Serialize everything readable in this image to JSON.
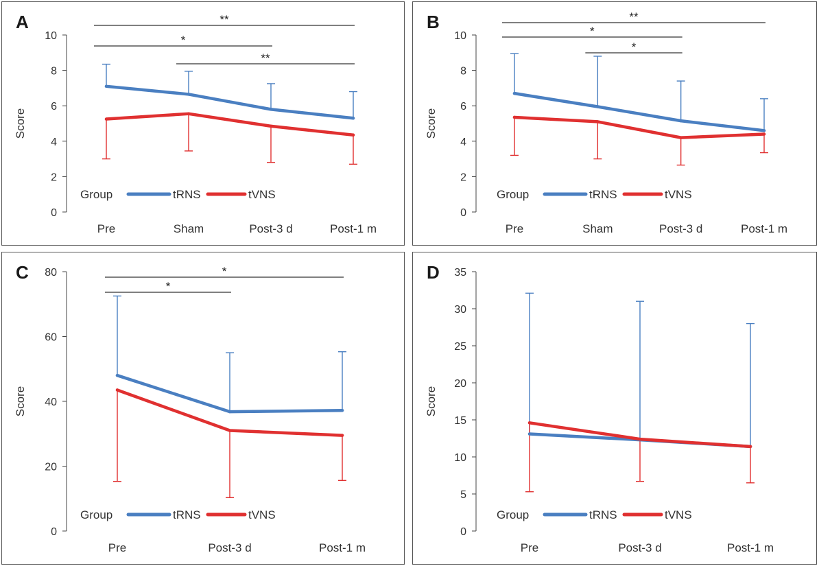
{
  "colors": {
    "tRNS": "#4a7fc1",
    "tVNS": "#e03030",
    "axis": "#444444",
    "bracket": "#333333"
  },
  "chart_data": [
    {
      "panel": "A",
      "type": "line",
      "ylabel": "Score",
      "ylim": [
        0,
        10
      ],
      "yticks": [
        0,
        2,
        4,
        6,
        8,
        10
      ],
      "categories": [
        "Pre",
        "Sham",
        "Post-3 d",
        "Post-1 m"
      ],
      "legend": {
        "title": "Group",
        "entries": [
          "tRNS",
          "tVNS"
        ]
      },
      "series": [
        {
          "name": "tRNS",
          "values": [
            7.1,
            6.65,
            5.8,
            5.3
          ],
          "err": [
            8.35,
            7.95,
            7.25,
            6.8
          ],
          "errdir": "up"
        },
        {
          "name": "tVNS",
          "values": [
            5.25,
            5.55,
            4.85,
            4.35
          ],
          "err": [
            3.0,
            3.45,
            2.8,
            2.7
          ],
          "errdir": "down"
        }
      ],
      "brackets": [
        {
          "from": 0,
          "to": 3,
          "label": "**",
          "level": 0
        },
        {
          "from": 0,
          "to": 2,
          "label": "*",
          "level": 1
        },
        {
          "from": 1,
          "to": 3,
          "label": "**",
          "level": 2
        }
      ]
    },
    {
      "panel": "B",
      "type": "line",
      "ylabel": "Score",
      "ylim": [
        0,
        10
      ],
      "yticks": [
        0,
        2,
        4,
        6,
        8,
        10
      ],
      "categories": [
        "Pre",
        "Sham",
        "Post-3 d",
        "Post-1 m"
      ],
      "legend": {
        "title": "Group",
        "entries": [
          "tRNS",
          "tVNS"
        ]
      },
      "series": [
        {
          "name": "tRNS",
          "values": [
            6.7,
            5.95,
            5.15,
            4.6
          ],
          "err": [
            8.95,
            8.8,
            7.4,
            6.4
          ],
          "errdir": "up"
        },
        {
          "name": "tVNS",
          "values": [
            5.35,
            5.1,
            4.2,
            4.4
          ],
          "err": [
            3.2,
            3.0,
            2.65,
            3.35
          ],
          "errdir": "down"
        }
      ],
      "brackets": [
        {
          "from": 0,
          "to": 3,
          "label": "**",
          "level": 0
        },
        {
          "from": 0,
          "to": 2,
          "label": "*",
          "level": 1
        },
        {
          "from": 1,
          "to": 2,
          "label": "*",
          "level": 2
        }
      ]
    },
    {
      "panel": "C",
      "type": "line",
      "ylabel": "Score",
      "ylim": [
        0,
        80
      ],
      "yticks": [
        0,
        20,
        40,
        60,
        80
      ],
      "categories": [
        "Pre",
        "Post-3 d",
        "Post-1 m"
      ],
      "legend": {
        "title": "Group",
        "entries": [
          "tRNS",
          "tVNS"
        ]
      },
      "series": [
        {
          "name": "tRNS",
          "values": [
            48,
            36.8,
            37.2
          ],
          "err": [
            72.5,
            55,
            55.3
          ],
          "errdir": "up"
        },
        {
          "name": "tVNS",
          "values": [
            43.5,
            31,
            29.5
          ],
          "err": [
            15.3,
            10.3,
            15.6
          ],
          "errdir": "down"
        }
      ],
      "brackets": [
        {
          "from": 0,
          "to": 2,
          "label": "*",
          "level": 0
        },
        {
          "from": 0,
          "to": 1,
          "label": "*",
          "level": 1
        }
      ]
    },
    {
      "panel": "D",
      "type": "line",
      "ylabel": "Score",
      "ylim": [
        0,
        35
      ],
      "yticks": [
        0,
        5,
        10,
        15,
        20,
        25,
        30,
        35
      ],
      "categories": [
        "Pre",
        "Post-3 d",
        "Post-1 m"
      ],
      "legend": {
        "title": "Group",
        "entries": [
          "tRNS",
          "tVNS"
        ]
      },
      "series": [
        {
          "name": "tRNS",
          "values": [
            13.1,
            12.3,
            11.4
          ],
          "err": [
            32.1,
            31.0,
            28.0
          ],
          "errdir": "up"
        },
        {
          "name": "tVNS",
          "values": [
            14.6,
            12.4,
            11.4
          ],
          "err": [
            5.3,
            6.7,
            6.5
          ],
          "errdir": "down"
        }
      ],
      "brackets": []
    }
  ]
}
